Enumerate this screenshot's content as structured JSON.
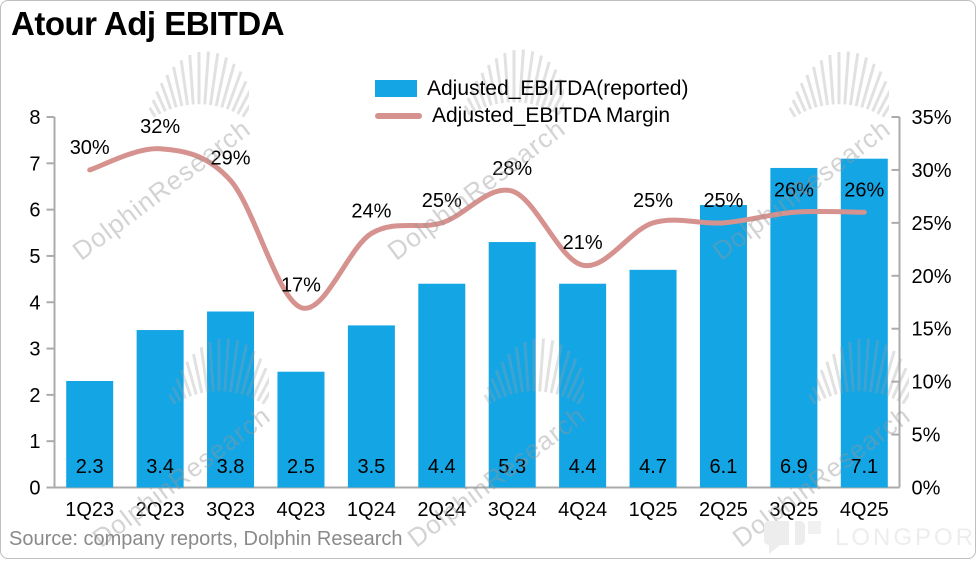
{
  "title": "Atour Adj EBITDA",
  "source": "Source: company reports, Dolphin Research",
  "watermark": {
    "text": "DolphinResearch",
    "brand": "LONGPORT"
  },
  "legend": {
    "items": [
      {
        "label": "Adjusted_EBITDA(reported)",
        "type": "bar"
      },
      {
        "label": "Adjusted_EBITDA Margin",
        "type": "line"
      }
    ]
  },
  "colors": {
    "bar": "#14a5e4",
    "line": "#d6928f",
    "axis": "#ababab",
    "label": "#000000",
    "source_text": "#8a8a8a",
    "watermark": "rgba(150,150,150,0.42)",
    "brand": "#ededed"
  },
  "chart_data": {
    "type": "bar",
    "title": "Atour Adj EBITDA",
    "categories": [
      "1Q23",
      "2Q23",
      "3Q23",
      "4Q23",
      "1Q24",
      "2Q24",
      "3Q24",
      "4Q24",
      "1Q25",
      "2Q25",
      "3Q25",
      "4Q25"
    ],
    "series": [
      {
        "name": "Adjusted_EBITDA(reported)",
        "type": "bar",
        "axis": "left",
        "values": [
          2.3,
          3.4,
          3.8,
          2.5,
          3.5,
          4.4,
          5.3,
          4.4,
          4.7,
          6.1,
          6.9,
          7.1
        ],
        "labels": [
          "2.3",
          "3.4",
          "3.8",
          "2.5",
          "3.5",
          "4.4",
          "5.3",
          "4.4",
          "4.7",
          "6.1",
          "6.9",
          "7.1"
        ]
      },
      {
        "name": "Adjusted_EBITDA Margin",
        "type": "line",
        "axis": "right",
        "values_pct": [
          30,
          32,
          29,
          17,
          24,
          25,
          28,
          21,
          25,
          25,
          26,
          26
        ],
        "labels": [
          "30%",
          "32%",
          "29%",
          "17%",
          "24%",
          "25%",
          "28%",
          "21%",
          "25%",
          "25%",
          "26%",
          "26%"
        ]
      }
    ],
    "left_axis": {
      "min": 0,
      "max": 8,
      "step": 1,
      "tick_labels": [
        "0",
        "1",
        "2",
        "3",
        "4",
        "5",
        "6",
        "7",
        "8"
      ]
    },
    "right_axis": {
      "min_pct": 0,
      "max_pct": 35,
      "step_pct": 5,
      "tick_labels": [
        "0%",
        "5%",
        "10%",
        "15%",
        "20%",
        "25%",
        "30%",
        "35%"
      ]
    },
    "grid": false,
    "legend_position": "top-center",
    "line_smooth": true
  }
}
